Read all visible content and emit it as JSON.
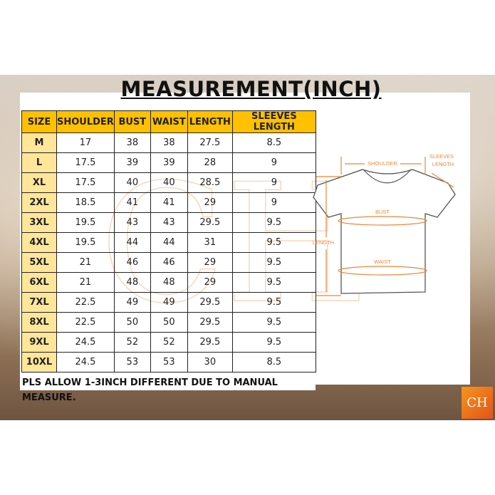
{
  "title": "MEASUREMENT(INCH)",
  "table": {
    "headers": [
      "SIZE",
      "SHOULDER",
      "BUST",
      "WAIST",
      "LENGTH",
      "SLEEVES LENGTH"
    ],
    "rows": [
      [
        "M",
        "17",
        "38",
        "38",
        "27.5",
        "8.5"
      ],
      [
        "L",
        "17.5",
        "39",
        "39",
        "28",
        "9"
      ],
      [
        "XL",
        "17.5",
        "40",
        "40",
        "28.5",
        "9"
      ],
      [
        "2XL",
        "18.5",
        "41",
        "41",
        "29",
        "9"
      ],
      [
        "3XL",
        "19.5",
        "43",
        "43",
        "29.5",
        "9.5"
      ],
      [
        "4XL",
        "19.5",
        "44",
        "44",
        "31",
        "9.5"
      ],
      [
        "5XL",
        "21",
        "46",
        "46",
        "29",
        "9.5"
      ],
      [
        "6XL",
        "21",
        "48",
        "48",
        "29",
        "9.5"
      ],
      [
        "7XL",
        "22.5",
        "49",
        "49",
        "29.5",
        "9.5"
      ],
      [
        "8XL",
        "22.5",
        "50",
        "50",
        "29.5",
        "9.5"
      ],
      [
        "9XL",
        "24.5",
        "52",
        "52",
        "29.5",
        "9.5"
      ],
      [
        "10XL",
        "24.5",
        "53",
        "53",
        "30",
        "8.5"
      ]
    ]
  },
  "note": "PLS ALLOW 1-3INCH DIFFERENT DUE TO MANUAL MEASURE.",
  "diagram": {
    "shoulder": "SHOULDER",
    "sleeves1": "SLEEVES",
    "sleeves2": "LENGTH",
    "bust": "BUST",
    "waist": "WAIST",
    "length": "LENGTH"
  },
  "logo": "CH",
  "colors": {
    "header": "#ffc000",
    "size_col": "#ffe699",
    "accent": "#e8873a"
  }
}
